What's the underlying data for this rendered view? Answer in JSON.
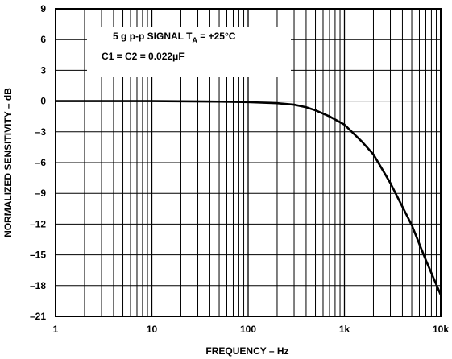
{
  "chart_data": {
    "type": "line",
    "xlabel": "FREQUENCY – Hz",
    "ylabel": "NORMALIZED SENSITIVITY – dB",
    "xscale": "log",
    "xlim": [
      1,
      10000
    ],
    "ylim": [
      -21,
      9
    ],
    "grid": true,
    "x_ticks": [
      1,
      10,
      100,
      1000,
      10000
    ],
    "x_tick_labels": [
      "1",
      "10",
      "100",
      "1k",
      "10k"
    ],
    "y_ticks": [
      9,
      6,
      3,
      0,
      -3,
      -6,
      -9,
      -12,
      -15,
      -18,
      -21
    ],
    "y_tick_labels": [
      "9",
      "6",
      "3",
      "0",
      "–3",
      "–6",
      "–9",
      "–12",
      "–15",
      "–18",
      "–21"
    ],
    "annotations": {
      "line1_main": "5 g p-p SIGNAL T",
      "line1_sub": "A",
      "line1_rest": " = +25°C",
      "line2": "C1 = C2 = 0.022μF"
    },
    "series": [
      {
        "x": [
          1,
          10,
          50,
          100,
          200,
          300,
          400,
          500,
          700,
          1000,
          1500,
          2000,
          3000,
          5000,
          7000,
          10000
        ],
        "y": [
          0,
          0,
          -0.05,
          -0.1,
          -0.2,
          -0.35,
          -0.6,
          -0.9,
          -1.5,
          -2.3,
          -3.9,
          -5.2,
          -8.0,
          -12.1,
          -15.5,
          -18.9
        ],
        "color": "#000000"
      }
    ]
  }
}
